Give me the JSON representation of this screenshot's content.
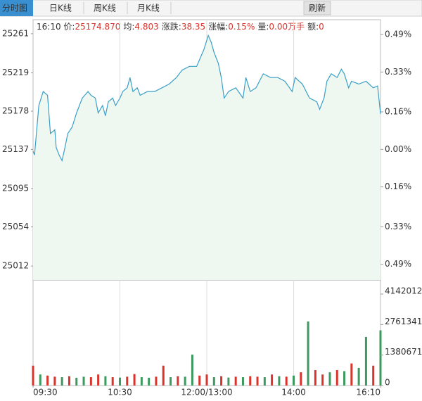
{
  "tabs": [
    "分时图",
    "日K线",
    "周K线",
    "月K线"
  ],
  "refresh": "刷新",
  "info": [
    {
      "label": "16:10 价:",
      "value": "25174.870"
    },
    {
      "label": "均:",
      "value": "4.803"
    },
    {
      "label": "涨跌:",
      "value": "38.35"
    },
    {
      "label": "涨幅:",
      "value": "0.15%"
    },
    {
      "label": "量:",
      "value": "0.00万手"
    },
    {
      "label": "额:",
      "value": "0"
    }
  ],
  "chart_data": [
    {
      "type": "line",
      "color": "#3a9fc8",
      "area_color": "#eef8f0",
      "x": [
        0,
        1,
        4,
        7,
        10,
        12,
        15,
        16,
        18,
        20,
        22,
        24,
        27,
        30,
        32,
        34,
        38,
        40,
        43,
        45,
        48,
        50,
        52,
        55,
        57,
        60,
        62,
        65,
        67,
        69,
        72,
        74,
        79,
        84,
        89,
        94,
        99,
        103,
        108,
        113,
        118,
        121,
        123,
        125,
        128,
        130,
        132,
        135,
        140,
        145,
        147,
        150,
        154,
        159,
        164,
        169,
        174,
        179,
        181,
        186,
        191,
        196,
        198,
        201,
        203,
        206,
        210,
        213,
        215,
        218,
        220,
        225,
        230,
        235,
        238,
        240
      ],
      "series": [
        {
          "values": [
            25135,
            25131,
            25184,
            25199,
            25195,
            25154,
            25158,
            25139,
            25131,
            25125,
            25139,
            25154,
            25161,
            25176,
            25184,
            25192,
            25199,
            25195,
            25192,
            25176,
            25184,
            25173,
            25188,
            25192,
            25184,
            25192,
            25199,
            25203,
            25214,
            25199,
            25203,
            25195,
            25199,
            25199,
            25203,
            25207,
            25214,
            25222,
            25226,
            25226,
            25244,
            25259,
            25252,
            25241,
            25229,
            25214,
            25192,
            25199,
            25203,
            25192,
            25214,
            25199,
            25203,
            25218,
            25214,
            25214,
            25210,
            25199,
            25214,
            25207,
            25192,
            25188,
            25180,
            25192,
            25210,
            25218,
            25214,
            25223,
            25218,
            25203,
            25210,
            25207,
            25210,
            25203,
            25205,
            25175
          ]
        }
      ],
      "xlim": [
        0,
        240
      ],
      "ylim": [
        24997,
        25276
      ],
      "yticks": [
        25261,
        25219,
        25178,
        25137,
        25095,
        25054,
        25012
      ],
      "y2lim": [
        -0.557,
        0.553
      ],
      "y2ticks": [
        {
          "value": 0.49,
          "label": "0.49%"
        },
        {
          "value": 0.33,
          "label": "0.33%"
        },
        {
          "value": 0.16,
          "label": "0.16%"
        },
        {
          "value": 0,
          "label": "0.00%"
        },
        {
          "value": -0.16,
          "label": "0.16%"
        },
        {
          "value": -0.33,
          "label": "0.33%"
        },
        {
          "value": -0.49,
          "label": "0.49%"
        }
      ],
      "up_color": "#d9342b",
      "flat_color": "#888888",
      "down_color": "#3c9a5f"
    },
    {
      "type": "bar",
      "x": [
        0,
        5,
        10,
        15,
        20,
        25,
        30,
        35,
        40,
        45,
        50,
        55,
        60,
        65,
        70,
        75,
        80,
        85,
        90,
        95,
        100,
        105,
        110,
        115,
        120,
        125,
        130,
        135,
        140,
        145,
        150,
        155,
        160,
        165,
        170,
        175,
        180,
        185,
        190,
        195,
        200,
        205,
        210,
        215,
        220,
        225,
        230,
        235,
        240
      ],
      "values": [
        900000,
        500000,
        450000,
        400000,
        380000,
        420000,
        350000,
        400000,
        380000,
        500000,
        420000,
        380000,
        360000,
        400000,
        520000,
        380000,
        350000,
        400000,
        900000,
        380000,
        420000,
        400000,
        1400000,
        450000,
        500000,
        380000,
        420000,
        360000,
        400000,
        380000,
        420000,
        400000,
        380000,
        500000,
        420000,
        400000,
        450000,
        600000,
        2900000,
        700000,
        500000,
        600000,
        700000,
        650000,
        1000000,
        800000,
        2200000,
        900000,
        2500000
      ],
      "bar_colors": [
        "#d9342b",
        "#3c9a5f",
        "#d9342b",
        "#d9342b",
        "#3c9a5f",
        "#d9342b",
        "#3c9a5f",
        "#3c9a5f",
        "#d9342b",
        "#d9342b",
        "#3c9a5f",
        "#d9342b",
        "#3c9a5f",
        "#d9342b",
        "#d9342b",
        "#3c9a5f",
        "#3c9a5f",
        "#d9342b",
        "#d9342b",
        "#3c9a5f",
        "#d9342b",
        "#3c9a5f",
        "#3c9a5f",
        "#d9342b",
        "#d9342b",
        "#3c9a5f",
        "#d9342b",
        "#3c9a5f",
        "#d9342b",
        "#3c9a5f",
        "#d9342b",
        "#d9342b",
        "#3c9a5f",
        "#d9342b",
        "#3c9a5f",
        "#d9342b",
        "#3c9a5f",
        "#d9342b",
        "#3c9a5f",
        "#d9342b",
        "#d9342b",
        "#3c9a5f",
        "#d9342b",
        "#3c9a5f",
        "#d9342b",
        "#3c9a5f",
        "#3c9a5f",
        "#d9342b",
        "#3c9a5f"
      ],
      "xlim": [
        0,
        240
      ],
      "ylim": [
        0,
        4779245
      ],
      "y2ticks": [
        4142012,
        2761341,
        1380671,
        0
      ],
      "xticks": [
        {
          "value": 0,
          "label": "09:30"
        },
        {
          "value": 60,
          "label": "10:30"
        },
        {
          "value": 120,
          "label": "12:00/13:00"
        },
        {
          "value": 180,
          "label": "14:00"
        },
        {
          "value": 240,
          "label": "16:10"
        }
      ]
    }
  ]
}
